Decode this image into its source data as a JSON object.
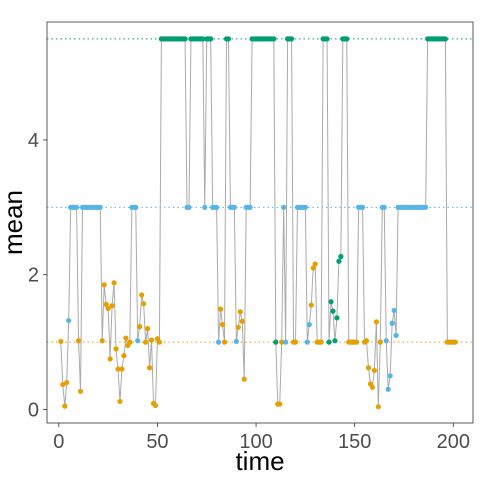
{
  "chart_data": {
    "type": "scatter",
    "xlabel": "time",
    "ylabel": "mean",
    "xlim": [
      -6,
      210
    ],
    "ylim": [
      -0.2,
      5.75
    ],
    "x_ticks": [
      0,
      50,
      100,
      150,
      200
    ],
    "y_ticks": [
      0,
      2,
      4
    ],
    "grid": false,
    "legend": "none",
    "reference_lines": [
      {
        "y": 1.0,
        "color": "#E69F00",
        "style": "dotted"
      },
      {
        "y": 3.0,
        "color": "#56B4E9",
        "style": "dotted"
      },
      {
        "y": 5.5,
        "color": "#009E73",
        "style": "dotted"
      }
    ],
    "connector_color": "#aaaaaa",
    "state_colors": [
      "#E69F00",
      "#56B4E9",
      "#009E73"
    ],
    "state_means": [
      1.0,
      3.0,
      5.5
    ],
    "states": [
      0,
      0,
      0,
      0,
      1,
      1,
      1,
      1,
      1,
      0,
      0,
      1,
      1,
      1,
      1,
      1,
      1,
      1,
      1,
      1,
      1,
      0,
      0,
      0,
      0,
      0,
      0,
      0,
      0,
      0,
      0,
      0,
      0,
      0,
      0,
      0,
      1,
      1,
      1,
      1,
      0,
      0,
      0,
      0,
      0,
      0,
      0,
      0,
      0,
      0,
      0,
      2,
      2,
      2,
      2,
      2,
      2,
      2,
      2,
      2,
      2,
      2,
      2,
      2,
      1,
      1,
      2,
      2,
      2,
      2,
      2,
      2,
      2,
      1,
      2,
      2,
      2,
      1,
      1,
      1,
      1,
      0,
      0,
      0,
      2,
      2,
      1,
      1,
      1,
      1,
      0,
      0,
      0,
      0,
      1,
      1,
      1,
      2,
      2,
      2,
      2,
      2,
      2,
      2,
      2,
      2,
      2,
      2,
      2,
      2,
      0,
      0,
      0,
      1,
      1,
      2,
      2,
      2,
      0,
      0,
      1,
      1,
      1,
      1,
      1,
      1,
      1,
      0,
      0,
      0,
      0,
      0,
      0,
      2,
      2,
      2,
      2,
      2,
      2,
      2,
      2,
      2,
      2,
      2,
      2,
      2,
      0,
      0,
      0,
      0,
      0,
      1,
      1,
      1,
      0,
      0,
      0,
      0,
      0,
      0,
      0,
      0,
      0,
      1,
      1,
      1,
      1,
      1,
      1,
      1,
      1,
      1,
      1,
      1,
      1,
      1,
      1,
      1,
      1,
      1,
      1,
      1,
      1,
      1,
      1,
      1,
      2,
      2,
      2,
      2,
      2,
      2,
      2,
      2,
      2,
      2,
      0,
      0,
      0,
      0,
      0
    ],
    "observations": [
      [
        1,
        1.01
      ],
      [
        2,
        0.37
      ],
      [
        3,
        0.05
      ],
      [
        4,
        0.4
      ],
      [
        5,
        1.32
      ],
      [
        10,
        1.02
      ],
      [
        11,
        0.27
      ],
      [
        22,
        1.02
      ],
      [
        23,
        1.85
      ],
      [
        24,
        1.56
      ],
      [
        25,
        1.5
      ],
      [
        26,
        0.75
      ],
      [
        27,
        1.54
      ],
      [
        28,
        1.88
      ],
      [
        29,
        0.9
      ],
      [
        30,
        0.6
      ],
      [
        31,
        0.12
      ],
      [
        32,
        0.6
      ],
      [
        33,
        0.8
      ],
      [
        34,
        1.06
      ],
      [
        35,
        0.95
      ],
      [
        40,
        1.02
      ],
      [
        41,
        1.23
      ],
      [
        42,
        1.7
      ],
      [
        43,
        1.57
      ],
      [
        44,
        1.0
      ],
      [
        45,
        1.2
      ],
      [
        46,
        0.62
      ],
      [
        47,
        1.03
      ],
      [
        48,
        0.09
      ],
      [
        49,
        0.06
      ],
      [
        50,
        1.05
      ],
      [
        81,
        1.0
      ],
      [
        82,
        1.49
      ],
      [
        83,
        1.26
      ],
      [
        90,
        1.01
      ],
      [
        91,
        1.22
      ],
      [
        92,
        1.45
      ],
      [
        93,
        1.31
      ],
      [
        94,
        0.45
      ],
      [
        110,
        1.0
      ],
      [
        111,
        0.08
      ],
      [
        112,
        0.08
      ],
      [
        115,
        1.0
      ],
      [
        126,
        1.0
      ],
      [
        127,
        1.26
      ],
      [
        128,
        1.55
      ],
      [
        129,
        2.1
      ],
      [
        130,
        2.16
      ],
      [
        137,
        1.0
      ],
      [
        138,
        1.6
      ],
      [
        139,
        1.46
      ],
      [
        140,
        1.02
      ],
      [
        141,
        1.36
      ],
      [
        142,
        2.2
      ],
      [
        143,
        2.27
      ],
      [
        156,
        1.02
      ],
      [
        157,
        0.62
      ],
      [
        158,
        0.38
      ],
      [
        159,
        0.33
      ],
      [
        160,
        0.58
      ],
      [
        161,
        1.3
      ],
      [
        162,
        0.04
      ],
      [
        166,
        1.02
      ],
      [
        167,
        0.3
      ],
      [
        168,
        0.5
      ],
      [
        169,
        1.28
      ],
      [
        170,
        1.47
      ],
      [
        171,
        1.1
      ]
    ]
  }
}
